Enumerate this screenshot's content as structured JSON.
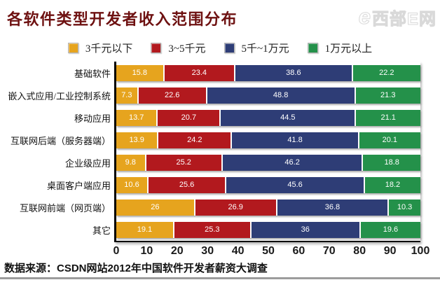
{
  "title": "各软件类型开发者收入范围分布",
  "watermark": {
    "mark": "e",
    "text": "西部E网"
  },
  "source": "数据来源：CSDN网站2012年中国软件开发者薪资大调查",
  "chart_data": {
    "type": "bar",
    "orientation": "horizontal-stacked",
    "title": "各软件类型开发者收入范围分布",
    "categories": [
      "基础软件",
      "嵌入式应用/工业控制系统",
      "移动应用",
      "互联网后端（服务器端）",
      "企业级应用",
      "桌面客户端应用",
      "互联网前端（网页端）",
      "其它"
    ],
    "series": [
      {
        "name": "3千元以下",
        "color": "#e6a41e",
        "values": [
          15.8,
          7.3,
          13.7,
          13.9,
          9.8,
          10.6,
          26,
          19.1
        ]
      },
      {
        "name": "3~5千元",
        "color": "#b2191e",
        "values": [
          23.4,
          22.6,
          20.7,
          24.2,
          25.2,
          25.6,
          26.9,
          25.3
        ]
      },
      {
        "name": "5千~1万元",
        "color": "#2e3d76",
        "values": [
          38.6,
          48.8,
          44.5,
          41.8,
          46.2,
          45.6,
          36.8,
          36
        ]
      },
      {
        "name": "1万元以上",
        "color": "#24914a",
        "values": [
          22.2,
          21.3,
          21.1,
          20.1,
          18.8,
          18.2,
          10.3,
          19.6
        ]
      }
    ],
    "xlabel": "",
    "ylabel": "",
    "xlim": [
      0,
      100
    ],
    "xticks": [
      0,
      10,
      20,
      30,
      40,
      50,
      60,
      70,
      80,
      90,
      100
    ],
    "grid": false,
    "legend_position": "top",
    "value_labels": "inside-white"
  }
}
